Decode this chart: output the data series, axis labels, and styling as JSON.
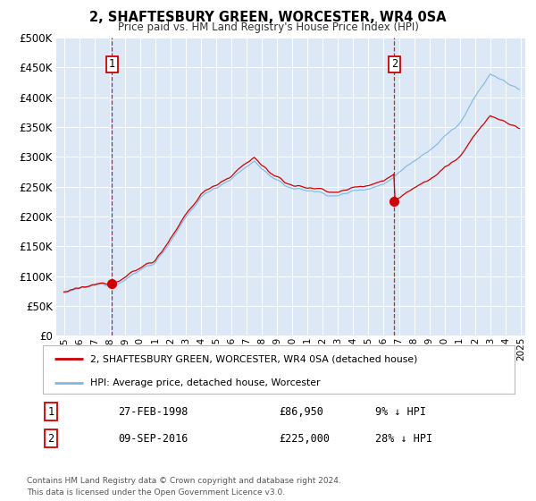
{
  "title": "2, SHAFTESBURY GREEN, WORCESTER, WR4 0SA",
  "subtitle": "Price paid vs. HM Land Registry's House Price Index (HPI)",
  "xlim": [
    1994.5,
    2025.3
  ],
  "ylim": [
    0,
    500000
  ],
  "yticks": [
    0,
    50000,
    100000,
    150000,
    200000,
    250000,
    300000,
    350000,
    400000,
    450000,
    500000
  ],
  "xticks": [
    1995,
    1996,
    1997,
    1998,
    1999,
    2000,
    2001,
    2002,
    2003,
    2004,
    2005,
    2006,
    2007,
    2008,
    2009,
    2010,
    2011,
    2012,
    2013,
    2014,
    2015,
    2016,
    2017,
    2018,
    2019,
    2020,
    2021,
    2022,
    2023,
    2024,
    2025
  ],
  "background_color": "#ffffff",
  "plot_bg_color": "#dce8f5",
  "grid_color": "#ffffff",
  "hpi_color": "#7fb8e0",
  "sale_color": "#cc0000",
  "marker_color": "#cc0000",
  "dashed_line_color": "#cc0000",
  "sale1_x": 1998.15,
  "sale1_y": 86950,
  "sale2_x": 2016.69,
  "sale2_y": 225000,
  "legend_label1": "2, SHAFTESBURY GREEN, WORCESTER, WR4 0SA (detached house)",
  "legend_label2": "HPI: Average price, detached house, Worcester",
  "note1_label": "1",
  "note1_date": "27-FEB-1998",
  "note1_price": "£86,950",
  "note1_hpi": "9% ↓ HPI",
  "note2_label": "2",
  "note2_date": "09-SEP-2016",
  "note2_price": "£225,000",
  "note2_hpi": "28% ↓ HPI",
  "footer": "Contains HM Land Registry data © Crown copyright and database right 2024.\nThis data is licensed under the Open Government Licence v3.0."
}
